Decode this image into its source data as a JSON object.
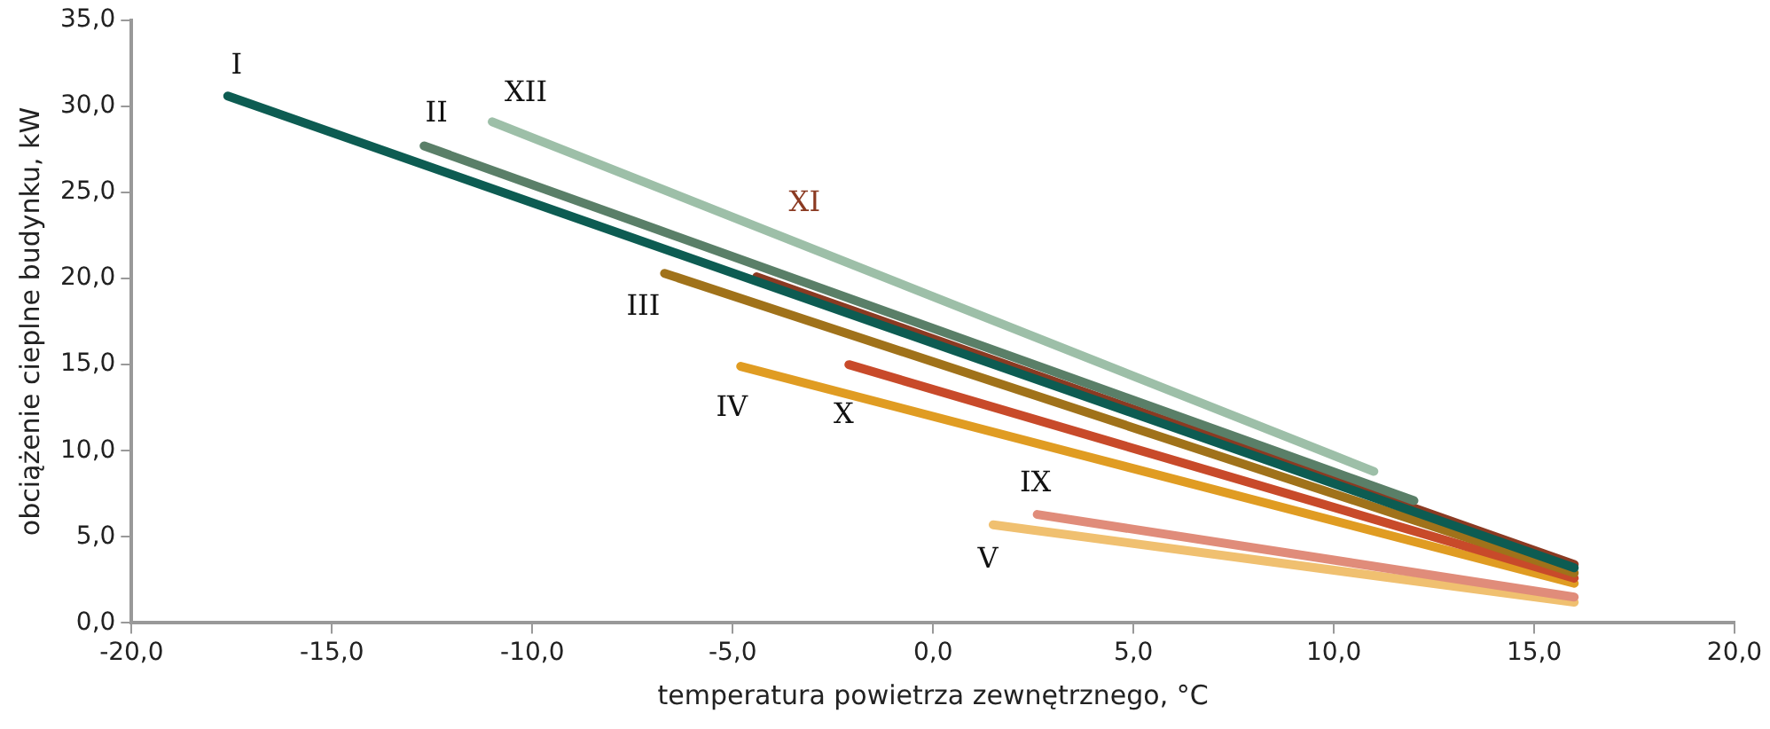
{
  "chart_data": {
    "type": "line",
    "xlabel": "temperatura powietrza zewnętrznego, °C",
    "ylabel": "obciążenie cieplne budynku, kW",
    "xlim": [
      -20,
      20
    ],
    "ylim": [
      0,
      35
    ],
    "xticks": [
      {
        "value": -20,
        "label": "-20,0"
      },
      {
        "value": -15,
        "label": "-15,0"
      },
      {
        "value": -10,
        "label": "-10,0"
      },
      {
        "value": -5,
        "label": "-5,0"
      },
      {
        "value": 0,
        "label": "0,0"
      },
      {
        "value": 5,
        "label": "5,0"
      },
      {
        "value": 10,
        "label": "10,0"
      },
      {
        "value": 15,
        "label": "15,0"
      },
      {
        "value": 20,
        "label": "20,0"
      }
    ],
    "yticks": [
      {
        "value": 0,
        "label": "0,0"
      },
      {
        "value": 5,
        "label": "5,0"
      },
      {
        "value": 10,
        "label": "10,0"
      },
      {
        "value": 15,
        "label": "15,0"
      },
      {
        "value": 20,
        "label": "20,0"
      },
      {
        "value": 25,
        "label": "25,0"
      },
      {
        "value": 30,
        "label": "30,0"
      },
      {
        "value": 35,
        "label": "35,0"
      }
    ],
    "grid": false,
    "legend": false,
    "marker": "none",
    "line_style": "solid",
    "series": [
      {
        "name": "I",
        "color": "#0d5c52",
        "x": [
          -17.6,
          16
        ],
        "values": [
          30.6,
          3.2
        ]
      },
      {
        "name": "II",
        "color": "#5a7f68",
        "x": [
          -12.7,
          12
        ],
        "values": [
          27.7,
          7.1
        ]
      },
      {
        "name": "XII",
        "color": "#9dbfa8",
        "x": [
          -11,
          11
        ],
        "values": [
          29.1,
          8.8
        ]
      },
      {
        "name": "III",
        "color": "#a0721a",
        "x": [
          -6.7,
          16
        ],
        "values": [
          20.3,
          2.9
        ]
      },
      {
        "name": "XI",
        "color": "#8b3a22",
        "x": [
          -4.4,
          16
        ],
        "values": [
          20.1,
          3.4
        ]
      },
      {
        "name": "X",
        "color": "#c84a2a",
        "x": [
          -2.1,
          16
        ],
        "values": [
          15,
          2.6
        ]
      },
      {
        "name": "IV",
        "color": "#e09c22",
        "x": [
          -4.8,
          16
        ],
        "values": [
          14.9,
          2.3
        ]
      },
      {
        "name": "IX",
        "color": "#e08c7a",
        "x": [
          2.6,
          16
        ],
        "values": [
          6.3,
          1.5
        ]
      },
      {
        "name": "V",
        "color": "#f0c070",
        "x": [
          1.5,
          16
        ],
        "values": [
          5.7,
          1.2
        ]
      }
    ]
  }
}
